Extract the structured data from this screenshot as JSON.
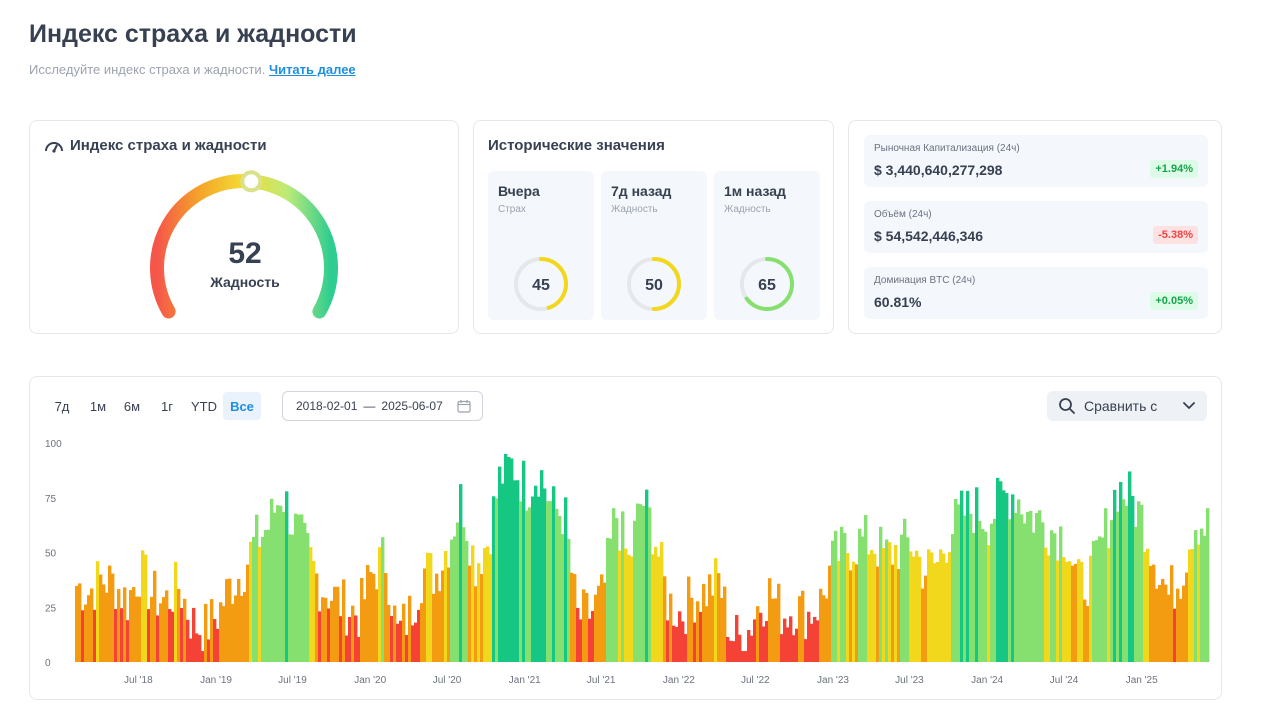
{
  "header": {
    "title": "Индекс страха и жадности",
    "subtitle": "Исследуйте индекс страха и жадности.",
    "read_more": "Читать далее"
  },
  "gauge": {
    "title": "Индекс страха и жадности",
    "value": 52,
    "label": "Жадность",
    "icon": "gauge-icon"
  },
  "historical": {
    "title": "Исторические значения",
    "items": [
      {
        "label": "Вчера",
        "sentiment": "Страх",
        "value": 45,
        "color": "#f2d81c"
      },
      {
        "label": "7д назад",
        "sentiment": "Жадность",
        "value": 50,
        "color": "#f2d81c"
      },
      {
        "label": "1м назад",
        "sentiment": "Жадность",
        "value": 65,
        "color": "#86e070"
      }
    ]
  },
  "market": [
    {
      "label": "Рыночная Капитализация (24ч)",
      "value": "$ 3,440,640,277,298",
      "change": "+1.94%",
      "direction": "up"
    },
    {
      "label": "Объём (24ч)",
      "value": "$ 54,542,446,346",
      "change": "-5.38%",
      "direction": "down"
    },
    {
      "label": "Доминация BTC (24ч)",
      "value": "60.81%",
      "change": "+0.05%",
      "direction": "up"
    }
  ],
  "controls": {
    "ranges": [
      "7д",
      "1м",
      "6м",
      "1г",
      "YTD",
      "Все"
    ],
    "active_range": "Все",
    "date_from": "2018-02-01",
    "date_sep": "—",
    "date_to": "2025-06-07",
    "compare_label": "Сравнить с"
  },
  "chart_data": {
    "type": "bar",
    "y_ticks": [
      100,
      75,
      50,
      25,
      0
    ],
    "ylim": [
      0,
      100
    ],
    "x_ticks": [
      "Jul '18",
      "Jan '19",
      "Jul '19",
      "Jan '20",
      "Jul '20",
      "Jan '21",
      "Jul '21",
      "Jan '22",
      "Jul '22",
      "Jan '23",
      "Jul '23",
      "Jan '24",
      "Jul '24",
      "Jan '25"
    ],
    "x_range": [
      "2018-02-01",
      "2025-06-07"
    ],
    "monthly_values": [
      [
        "2018-02",
        35
      ],
      [
        "2018-03",
        32
      ],
      [
        "2018-04",
        38
      ],
      [
        "2018-05",
        36
      ],
      [
        "2018-06",
        28
      ],
      [
        "2018-07",
        42
      ],
      [
        "2018-08",
        30
      ],
      [
        "2018-09",
        28
      ],
      [
        "2018-10",
        35
      ],
      [
        "2018-11",
        18
      ],
      [
        "2018-12",
        15
      ],
      [
        "2019-01",
        22
      ],
      [
        "2019-02",
        35
      ],
      [
        "2019-03",
        42
      ],
      [
        "2019-04",
        55
      ],
      [
        "2019-05",
        62
      ],
      [
        "2019-06",
        78
      ],
      [
        "2019-07",
        62
      ],
      [
        "2019-08",
        50
      ],
      [
        "2019-09",
        35
      ],
      [
        "2019-10",
        30
      ],
      [
        "2019-11",
        25
      ],
      [
        "2019-12",
        22
      ],
      [
        "2020-01",
        40
      ],
      [
        "2020-02",
        48
      ],
      [
        "2020-03",
        12
      ],
      [
        "2020-04",
        22
      ],
      [
        "2020-05",
        42
      ],
      [
        "2020-06",
        40
      ],
      [
        "2020-07",
        55
      ],
      [
        "2020-08",
        75
      ],
      [
        "2020-09",
        45
      ],
      [
        "2020-10",
        55
      ],
      [
        "2020-11",
        85
      ],
      [
        "2020-12",
        90
      ],
      [
        "2021-01",
        80
      ],
      [
        "2021-02",
        88
      ],
      [
        "2021-03",
        70
      ],
      [
        "2021-04",
        68
      ],
      [
        "2021-05",
        20
      ],
      [
        "2021-06",
        22
      ],
      [
        "2021-07",
        30
      ],
      [
        "2021-08",
        68
      ],
      [
        "2021-09",
        45
      ],
      [
        "2021-10",
        75
      ],
      [
        "2021-11",
        58
      ],
      [
        "2021-12",
        28
      ],
      [
        "2022-01",
        22
      ],
      [
        "2022-02",
        30
      ],
      [
        "2022-03",
        32
      ],
      [
        "2022-04",
        38
      ],
      [
        "2022-05",
        12
      ],
      [
        "2022-06",
        10
      ],
      [
        "2022-07",
        25
      ],
      [
        "2022-08",
        32
      ],
      [
        "2022-09",
        22
      ],
      [
        "2022-10",
        25
      ],
      [
        "2022-11",
        22
      ],
      [
        "2022-12",
        28
      ],
      [
        "2023-01",
        48
      ],
      [
        "2023-02",
        52
      ],
      [
        "2023-03",
        55
      ],
      [
        "2023-04",
        55
      ],
      [
        "2023-05",
        48
      ],
      [
        "2023-06",
        52
      ],
      [
        "2023-07",
        55
      ],
      [
        "2023-08",
        42
      ],
      [
        "2023-09",
        45
      ],
      [
        "2023-10",
        60
      ],
      [
        "2023-11",
        68
      ],
      [
        "2023-12",
        70
      ],
      [
        "2024-01",
        65
      ],
      [
        "2024-02",
        75
      ],
      [
        "2024-03",
        78
      ],
      [
        "2024-04",
        68
      ],
      [
        "2024-05",
        65
      ],
      [
        "2024-06",
        60
      ],
      [
        "2024-07",
        58
      ],
      [
        "2024-08",
        35
      ],
      [
        "2024-09",
        40
      ],
      [
        "2024-10",
        58
      ],
      [
        "2024-11",
        80
      ],
      [
        "2024-12",
        75
      ],
      [
        "2025-01",
        65
      ],
      [
        "2025-02",
        45
      ],
      [
        "2025-03",
        30
      ],
      [
        "2025-04",
        40
      ],
      [
        "2025-05",
        65
      ],
      [
        "2025-06",
        62
      ]
    ]
  },
  "colors": {
    "extreme_fear": "#f44336",
    "fear": "#f39c12",
    "neutral": "#f2d81c",
    "greed": "#86e070",
    "extreme_greed": "#16c784",
    "accent": "#1d8fe1"
  }
}
